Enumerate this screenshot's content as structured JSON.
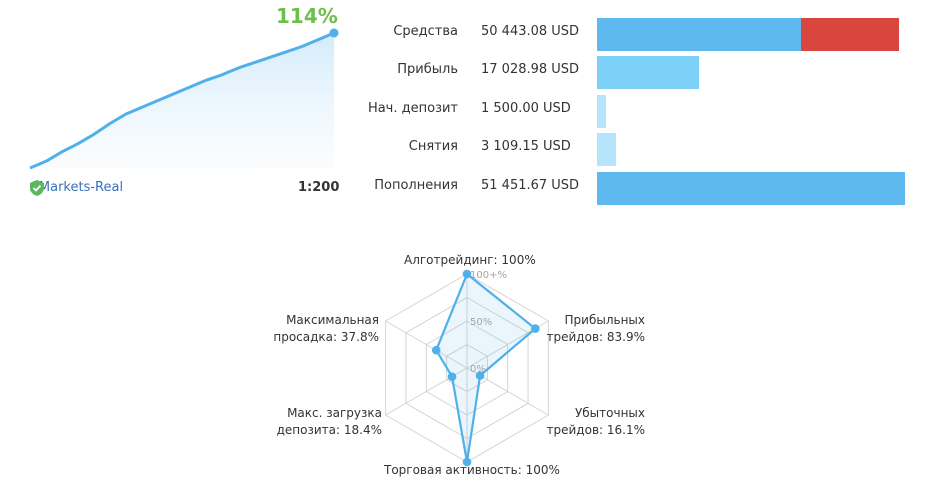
{
  "growth": {
    "value_label": "114%",
    "broker": "AMarkets-Real",
    "leverage": "1:200",
    "color": "#4fb0ea",
    "curve": [
      0,
      5,
      12,
      18,
      25,
      33,
      40,
      45,
      50,
      55,
      60,
      65,
      69,
      74,
      78,
      82,
      86,
      90,
      95,
      100
    ]
  },
  "balances": {
    "rows": [
      {
        "label": "Средства",
        "value": "50 443.08 USD",
        "segments": [
          {
            "value": 34,
            "color": "#5db9ee"
          },
          {
            "value": 16.4,
            "color": "#d9463d"
          }
        ]
      },
      {
        "label": "Прибыль",
        "value": "17 028.98 USD",
        "segments": [
          {
            "value": 17.03,
            "color": "#7dd0f7"
          }
        ]
      },
      {
        "label": "Нач. депозит",
        "value": "1 500.00 USD",
        "segments": [
          {
            "value": 1.5,
            "color": "#b6e4fb"
          }
        ]
      },
      {
        "label": "Снятия",
        "value": "3 109.15 USD",
        "segments": [
          {
            "value": 3.11,
            "color": "#b6e4fb"
          }
        ]
      },
      {
        "label": "Пополнения",
        "value": "51 451.67 USD",
        "segments": [
          {
            "value": 51.45,
            "color": "#5db9ee"
          }
        ]
      }
    ]
  },
  "chart_data": {
    "type": "radar",
    "axes": [
      {
        "label_lines": [
          "Алготрейдинг: 100%"
        ],
        "value": 100
      },
      {
        "label_lines": [
          "Прибыльных",
          "трейдов: 83.9%"
        ],
        "value": 83.9
      },
      {
        "label_lines": [
          "Убыточных",
          "трейдов: 16.1%"
        ],
        "value": 16.1
      },
      {
        "label_lines": [
          "Торговая активность: 100%"
        ],
        "value": 100
      },
      {
        "label_lines": [
          "Макс. загрузка",
          "депозита: 18.4%"
        ],
        "value": 18.4
      },
      {
        "label_lines": [
          "Максимальная",
          "просадка: 37.8%"
        ],
        "value": 37.8
      }
    ],
    "ticks": [
      "0%",
      "50%",
      "100+%"
    ],
    "max": 100,
    "color": "#4fb0ea"
  }
}
